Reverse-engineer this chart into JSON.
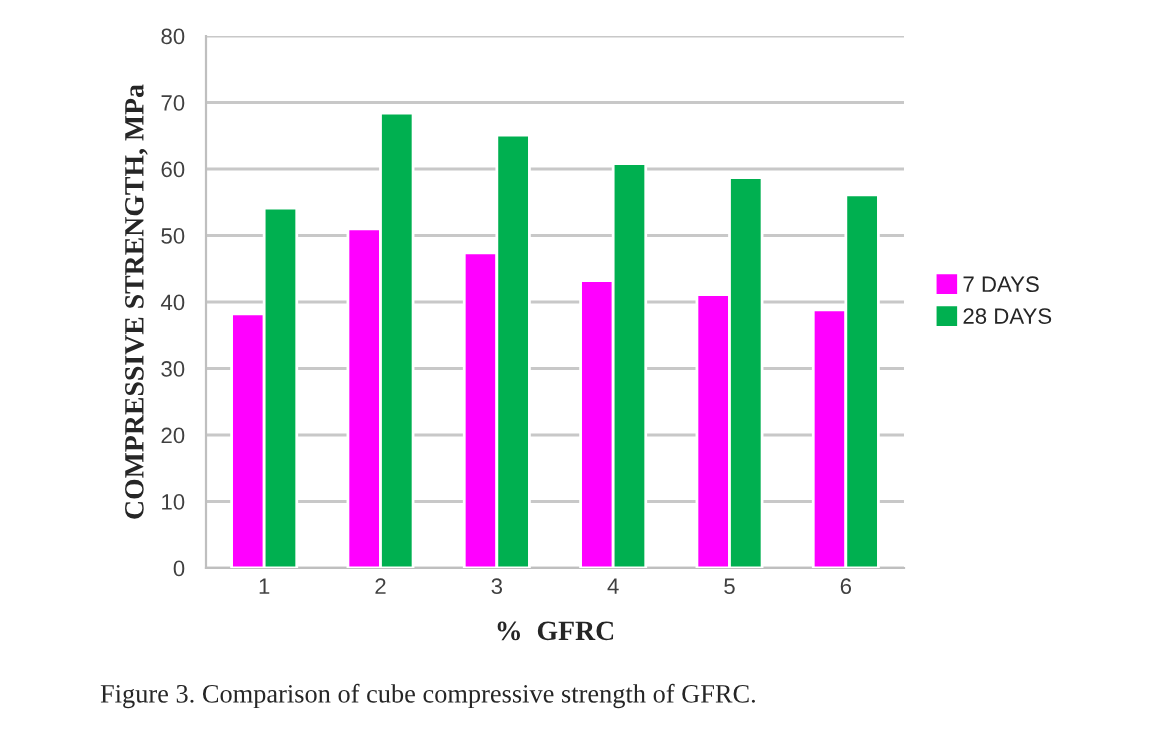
{
  "chart_data": {
    "type": "bar",
    "xlabel": "%  GFRC",
    "ylabel": "COMPRESSIVE STRENGTH, MPa",
    "categories": [
      "1",
      "2",
      "3",
      "4",
      "5",
      "6"
    ],
    "series": [
      {
        "name": "7 DAYS",
        "color": "#ff00ff",
        "values": [
          38.2,
          51.0,
          47.4,
          43.2,
          41.1,
          38.8
        ]
      },
      {
        "name": "28 DAYS",
        "color": "#00b050",
        "values": [
          54.1,
          68.4,
          65.1,
          60.8,
          58.7,
          56.1
        ]
      }
    ],
    "ylim": [
      0,
      80
    ],
    "yticks": [
      0,
      10,
      20,
      30,
      40,
      50,
      60,
      70,
      80
    ],
    "grid": "y",
    "legend": "right",
    "annotations": [
      "Figure 3. Comparison of cube compressive strength of GFRC."
    ]
  }
}
